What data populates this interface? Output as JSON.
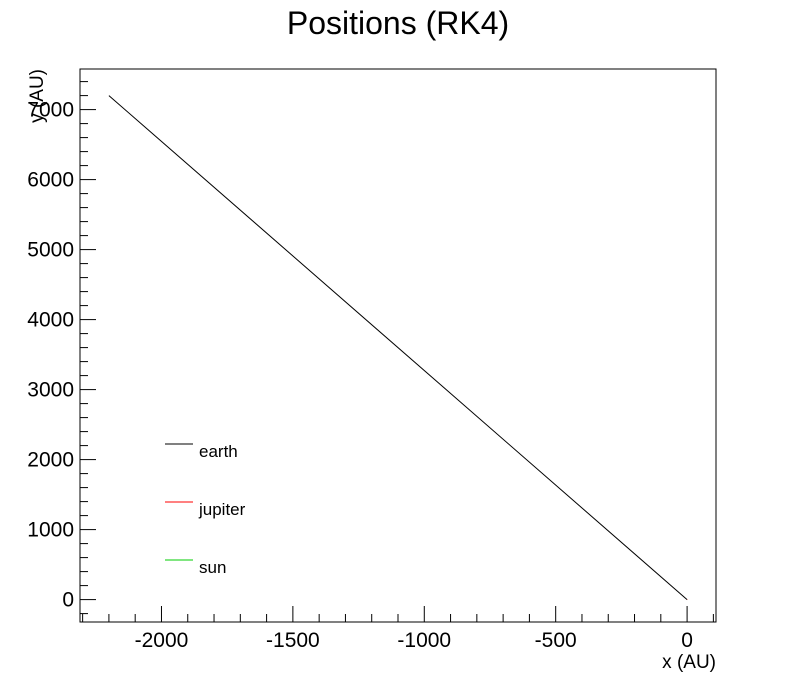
{
  "chart_data": {
    "type": "line",
    "title": "Positions (RK4)",
    "xlabel": "x (AU)",
    "ylabel": "y (AU)",
    "xlim": [
      -2310,
      110
    ],
    "ylim": [
      -320,
      7580
    ],
    "xticks": [
      -2000,
      -1500,
      -1000,
      -500,
      0
    ],
    "yticks": [
      0,
      1000,
      2000,
      3000,
      4000,
      5000,
      6000,
      7000
    ],
    "xtick_labels": [
      "-2000",
      "-1500",
      "-1000",
      "-500",
      "0"
    ],
    "ytick_labels": [
      "0",
      "1000",
      "2000",
      "3000",
      "4000",
      "5000",
      "6000",
      "7000"
    ],
    "grid": false,
    "legend_position": "bottom-left",
    "series": [
      {
        "name": "earth",
        "color": "#000000",
        "x": [
          0,
          -2200
        ],
        "y": [
          0,
          7200
        ]
      },
      {
        "name": "jupiter",
        "color": "#ff0000",
        "x": [
          0,
          1
        ],
        "y": [
          0,
          -2
        ]
      },
      {
        "name": "sun",
        "color": "#00cc00",
        "x": [
          0,
          0
        ],
        "y": [
          0,
          0
        ]
      }
    ]
  }
}
